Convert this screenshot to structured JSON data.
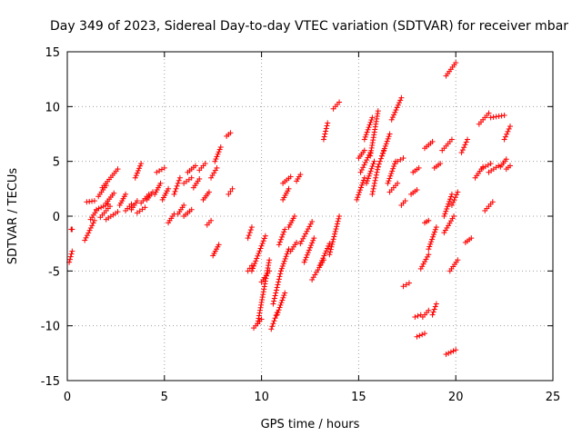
{
  "chart_data": {
    "type": "scatter",
    "title": "Day 349 of 2023, Sidereal Day-to-day VTEC variation (SDTVAR) for receiver mbar",
    "xlabel": "GPS time / hours",
    "ylabel": "SDTVAR / TECUs",
    "xlim": [
      0,
      25
    ],
    "ylim": [
      -15,
      15
    ],
    "x_ticks": [
      0,
      5,
      10,
      15,
      20,
      25
    ],
    "y_ticks": [
      -15,
      -10,
      -5,
      0,
      5,
      10,
      15
    ],
    "grid": true,
    "marker": "plus",
    "color": "#ff0000",
    "segments": [
      [
        0.1,
        0.25,
        -4.2,
        -3.2
      ],
      [
        0.2,
        0.25,
        -1.2,
        -1.2
      ],
      [
        0.9,
        1.4,
        -2.2,
        -0.4
      ],
      [
        1.0,
        1.4,
        1.3,
        1.4
      ],
      [
        1.2,
        1.5,
        -0.3,
        0.5
      ],
      [
        1.5,
        2.1,
        0.6,
        1.1
      ],
      [
        1.6,
        2.0,
        1.8,
        2.8
      ],
      [
        1.7,
        2.2,
        -0.1,
        0.9
      ],
      [
        1.8,
        2.6,
        2.6,
        4.3
      ],
      [
        2.0,
        2.4,
        1.2,
        2.1
      ],
      [
        2.0,
        2.6,
        -0.3,
        0.4
      ],
      [
        2.7,
        3.0,
        1.0,
        2.0
      ],
      [
        3.0,
        3.3,
        0.5,
        1.1
      ],
      [
        3.3,
        3.6,
        0.6,
        1.4
      ],
      [
        3.5,
        3.8,
        3.5,
        4.8
      ],
      [
        3.6,
        4.0,
        0.3,
        0.8
      ],
      [
        3.8,
        4.2,
        1.2,
        2.0
      ],
      [
        4.1,
        4.4,
        1.5,
        2.2
      ],
      [
        4.5,
        4.8,
        2.0,
        3.0
      ],
      [
        4.6,
        5.0,
        4.0,
        4.4
      ],
      [
        4.9,
        5.2,
        1.5,
        2.5
      ],
      [
        5.2,
        5.5,
        -0.6,
        0.2
      ],
      [
        5.5,
        5.8,
        2.0,
        3.5
      ],
      [
        5.7,
        6.0,
        0.2,
        1.0
      ],
      [
        6.0,
        6.4,
        3.0,
        3.5
      ],
      [
        6.0,
        6.4,
        0.0,
        0.6
      ],
      [
        6.2,
        6.6,
        4.0,
        4.6
      ],
      [
        6.5,
        6.8,
        2.6,
        3.4
      ],
      [
        6.8,
        7.1,
        4.2,
        4.8
      ],
      [
        7.0,
        7.3,
        1.5,
        2.2
      ],
      [
        7.2,
        7.4,
        -0.8,
        -0.4
      ],
      [
        7.4,
        7.7,
        3.5,
        4.4
      ],
      [
        7.5,
        7.8,
        -3.6,
        -2.6
      ],
      [
        7.6,
        7.9,
        5.0,
        6.3
      ],
      [
        8.2,
        8.4,
        7.3,
        7.6
      ],
      [
        8.3,
        8.5,
        2.0,
        2.5
      ],
      [
        9.3,
        9.5,
        -2.0,
        -1.0
      ],
      [
        9.3,
        9.5,
        -5.0,
        -4.5
      ],
      [
        9.5,
        10.2,
        -5.0,
        -1.8
      ],
      [
        9.6,
        10.0,
        -10.2,
        -9.4
      ],
      [
        9.8,
        10.4,
        -9.8,
        -4.0
      ],
      [
        10.0,
        10.4,
        -6.0,
        -5.0
      ],
      [
        10.5,
        10.8,
        -10.3,
        -8.8
      ],
      [
        10.6,
        11.0,
        -8.0,
        -5.0
      ],
      [
        10.8,
        11.2,
        -9.0,
        -7.0
      ],
      [
        10.9,
        11.2,
        -2.6,
        -1.2
      ],
      [
        11.0,
        11.4,
        -5.0,
        -3.0
      ],
      [
        11.1,
        11.5,
        3.0,
        3.6
      ],
      [
        11.1,
        11.4,
        1.5,
        2.5
      ],
      [
        11.4,
        11.7,
        -1.0,
        0.0
      ],
      [
        11.5,
        11.8,
        -3.2,
        -2.4
      ],
      [
        11.8,
        12.0,
        3.2,
        3.8
      ],
      [
        12.0,
        12.6,
        -2.5,
        -0.5
      ],
      [
        12.2,
        12.7,
        -4.2,
        -2.0
      ],
      [
        12.6,
        13.2,
        -5.8,
        -4.0
      ],
      [
        13.2,
        13.4,
        7.0,
        8.5
      ],
      [
        13.0,
        13.5,
        -4.5,
        -2.5
      ],
      [
        13.5,
        14.0,
        -3.5,
        0.0
      ],
      [
        13.7,
        14.0,
        9.8,
        10.4
      ],
      [
        14.9,
        15.3,
        1.5,
        3.5
      ],
      [
        15.0,
        15.3,
        5.3,
        6.0
      ],
      [
        15.1,
        15.6,
        4.0,
        5.8
      ],
      [
        15.3,
        15.7,
        7.0,
        9.0
      ],
      [
        15.4,
        15.8,
        3.0,
        5.0
      ],
      [
        15.6,
        16.0,
        5.5,
        9.6
      ],
      [
        15.7,
        16.0,
        2.0,
        4.5
      ],
      [
        16.0,
        16.3,
        4.5,
        6.0
      ],
      [
        16.2,
        16.6,
        5.5,
        7.5
      ],
      [
        16.5,
        16.9,
        3.0,
        5.0
      ],
      [
        16.6,
        17.0,
        2.2,
        3.0
      ],
      [
        16.7,
        17.2,
        8.8,
        10.8
      ],
      [
        17.0,
        17.3,
        5.0,
        5.3
      ],
      [
        17.2,
        17.4,
        1.0,
        1.4
      ],
      [
        17.3,
        17.6,
        -6.4,
        -6.1
      ],
      [
        17.7,
        18.0,
        2.0,
        2.4
      ],
      [
        17.8,
        18.1,
        4.0,
        4.4
      ],
      [
        17.9,
        18.2,
        -9.2,
        -9.0
      ],
      [
        18.0,
        18.4,
        -11.0,
        -10.7
      ],
      [
        18.2,
        18.6,
        -4.8,
        -3.5
      ],
      [
        18.3,
        18.6,
        -9.2,
        -8.6
      ],
      [
        18.4,
        18.8,
        6.2,
        6.8
      ],
      [
        18.4,
        18.6,
        -0.6,
        -0.4
      ],
      [
        18.6,
        19.0,
        -3.0,
        -1.0
      ],
      [
        18.8,
        19.0,
        -9.0,
        -8.0
      ],
      [
        18.9,
        19.2,
        4.4,
        4.8
      ],
      [
        19.3,
        19.8,
        6.0,
        7.0
      ],
      [
        19.4,
        19.8,
        0.0,
        2.0
      ],
      [
        19.4,
        19.9,
        -1.5,
        0.0
      ],
      [
        19.5,
        20.0,
        12.8,
        14.0
      ],
      [
        19.5,
        20.0,
        -12.6,
        -12.2
      ],
      [
        19.7,
        20.1,
        -5.0,
        -4.0
      ],
      [
        19.8,
        20.1,
        1.0,
        2.2
      ],
      [
        20.3,
        20.6,
        5.8,
        7.0
      ],
      [
        20.5,
        20.8,
        -2.4,
        -2.0
      ],
      [
        21.0,
        21.4,
        3.5,
        4.5
      ],
      [
        21.2,
        21.7,
        8.4,
        9.4
      ],
      [
        21.4,
        21.8,
        4.4,
        4.8
      ],
      [
        21.5,
        21.9,
        0.5,
        1.3
      ],
      [
        21.7,
        22.2,
        4.0,
        4.6
      ],
      [
        21.8,
        22.5,
        9.0,
        9.2
      ],
      [
        22.3,
        22.6,
        4.5,
        5.2
      ],
      [
        22.5,
        22.8,
        7.0,
        8.2
      ],
      [
        22.6,
        22.8,
        4.3,
        4.6
      ]
    ]
  }
}
